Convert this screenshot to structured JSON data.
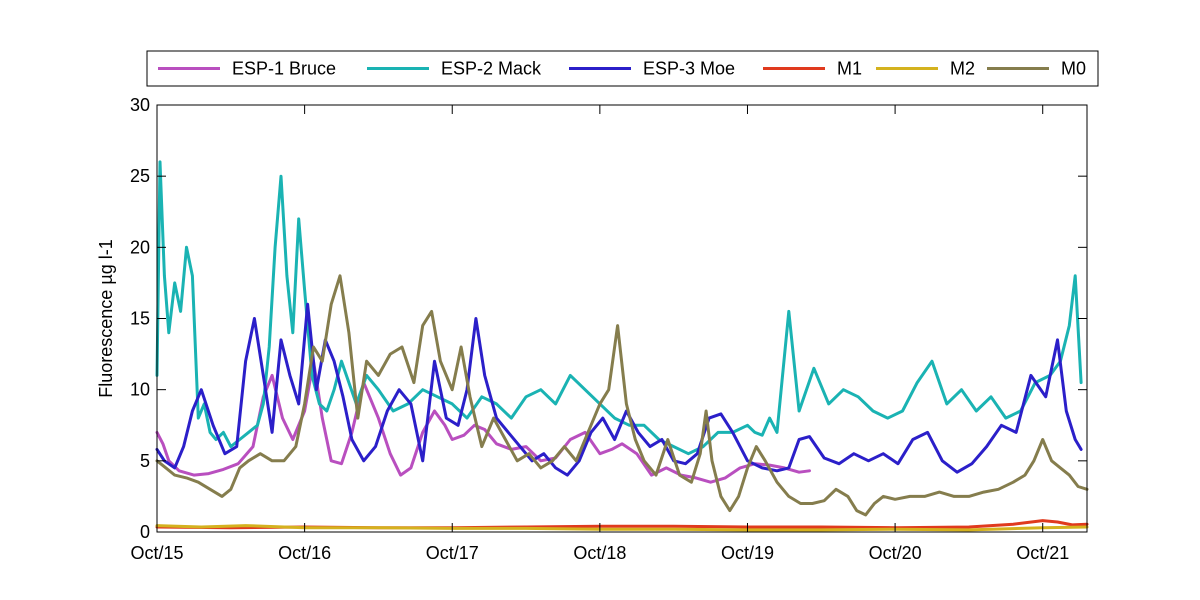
{
  "chart_data": {
    "type": "line",
    "ylabel": "Fluorescence µg l-1",
    "ylim": [
      0,
      30
    ],
    "yticks": [
      0,
      5,
      10,
      15,
      20,
      25,
      30
    ],
    "xlim": [
      15,
      21.3
    ],
    "xticks": [
      {
        "value": 15,
        "label": "Oct/15"
      },
      {
        "value": 16,
        "label": "Oct/16"
      },
      {
        "value": 17,
        "label": "Oct/17"
      },
      {
        "value": 18,
        "label": "Oct/18"
      },
      {
        "value": 19,
        "label": "Oct/19"
      },
      {
        "value": 20,
        "label": "Oct/20"
      },
      {
        "value": 21,
        "label": "Oct/21"
      }
    ],
    "legend_position": "top",
    "series": [
      {
        "name": "ESP-1 Bruce",
        "color": "#b94fbf",
        "x": [
          15.0,
          15.04,
          15.08,
          15.15,
          15.25,
          15.35,
          15.45,
          15.55,
          15.65,
          15.72,
          15.78,
          15.85,
          15.92,
          16.0,
          16.06,
          16.12,
          16.18,
          16.25,
          16.32,
          16.4,
          16.5,
          16.58,
          16.65,
          16.72,
          16.8,
          16.88,
          16.95,
          17.0,
          17.08,
          17.15,
          17.22,
          17.3,
          17.4,
          17.5,
          17.6,
          17.7,
          17.8,
          17.9,
          18.0,
          18.08,
          18.15,
          18.25,
          18.35,
          18.45,
          18.55,
          18.65,
          18.75,
          18.85,
          18.95,
          19.05,
          19.15,
          19.25,
          19.35,
          19.42
        ],
        "y": [
          7.0,
          6.2,
          5.0,
          4.3,
          4.0,
          4.1,
          4.4,
          4.8,
          6.0,
          9.5,
          11.0,
          8.0,
          6.5,
          8.5,
          12.0,
          8.0,
          5.0,
          4.8,
          7.0,
          10.5,
          8.0,
          5.5,
          4.0,
          4.5,
          7.0,
          8.5,
          7.5,
          6.5,
          6.8,
          7.5,
          7.2,
          6.2,
          5.8,
          6.0,
          5.0,
          5.2,
          6.5,
          7.0,
          5.5,
          5.8,
          6.2,
          5.5,
          4.0,
          4.5,
          4.0,
          3.8,
          3.5,
          3.8,
          4.5,
          4.8,
          4.7,
          4.5,
          4.2,
          4.3
        ]
      },
      {
        "name": "ESP-2 Mack",
        "color": "#1ab3b3",
        "x": [
          15.0,
          15.02,
          15.05,
          15.08,
          15.12,
          15.16,
          15.2,
          15.24,
          15.28,
          15.32,
          15.36,
          15.4,
          15.45,
          15.5,
          15.56,
          15.62,
          15.68,
          15.72,
          15.76,
          15.8,
          15.84,
          15.88,
          15.92,
          15.96,
          16.0,
          16.05,
          16.1,
          16.15,
          16.2,
          16.25,
          16.3,
          16.35,
          16.42,
          16.5,
          16.6,
          16.7,
          16.8,
          16.9,
          17.0,
          17.1,
          17.2,
          17.3,
          17.4,
          17.5,
          17.6,
          17.7,
          17.8,
          17.9,
          18.0,
          18.1,
          18.2,
          18.3,
          18.4,
          18.5,
          18.6,
          18.7,
          18.8,
          18.9,
          19.0,
          19.05,
          19.1,
          19.15,
          19.2,
          19.28,
          19.35,
          19.45,
          19.55,
          19.65,
          19.75,
          19.85,
          19.95,
          20.05,
          20.15,
          20.25,
          20.35,
          20.45,
          20.55,
          20.65,
          20.75,
          20.85,
          20.95,
          21.05,
          21.12,
          21.18,
          21.22,
          21.26
        ],
        "y": [
          11.0,
          26.0,
          18.0,
          14.0,
          17.5,
          15.5,
          20.0,
          18.0,
          8.0,
          9.0,
          7.0,
          6.5,
          7.0,
          6.0,
          6.5,
          7.0,
          7.5,
          9.0,
          13.0,
          20.0,
          25.0,
          18.0,
          14.0,
          22.0,
          17.0,
          11.0,
          9.0,
          8.5,
          10.0,
          12.0,
          10.5,
          9.0,
          11.0,
          10.0,
          8.5,
          9.0,
          10.0,
          9.5,
          9.0,
          8.0,
          9.5,
          9.0,
          8.0,
          9.5,
          10.0,
          9.0,
          11.0,
          10.0,
          9.0,
          8.0,
          7.5,
          7.5,
          6.5,
          6.0,
          5.5,
          6.0,
          7.0,
          7.0,
          7.5,
          7.0,
          6.8,
          8.0,
          7.0,
          15.5,
          8.5,
          11.5,
          9.0,
          10.0,
          9.5,
          8.5,
          8.0,
          8.5,
          10.5,
          12.0,
          9.0,
          10.0,
          8.5,
          9.5,
          8.0,
          8.5,
          10.5,
          11.0,
          12.0,
          14.5,
          18.0,
          10.5
        ]
      },
      {
        "name": "ESP-3 Moe",
        "color": "#2b1fc9",
        "x": [
          15.0,
          15.05,
          15.12,
          15.18,
          15.24,
          15.3,
          15.38,
          15.46,
          15.54,
          15.6,
          15.66,
          15.72,
          15.78,
          15.84,
          15.9,
          15.96,
          16.02,
          16.08,
          16.14,
          16.2,
          16.26,
          16.32,
          16.4,
          16.48,
          16.56,
          16.64,
          16.72,
          16.8,
          16.88,
          16.96,
          17.04,
          17.1,
          17.16,
          17.22,
          17.3,
          17.38,
          17.46,
          17.54,
          17.62,
          17.7,
          17.78,
          17.86,
          17.94,
          18.02,
          18.1,
          18.18,
          18.26,
          18.34,
          18.42,
          18.5,
          18.58,
          18.66,
          18.74,
          18.82,
          18.9,
          19.0,
          19.1,
          19.2,
          19.28,
          19.35,
          19.42,
          19.52,
          19.62,
          19.72,
          19.82,
          19.92,
          20.02,
          20.12,
          20.22,
          20.32,
          20.42,
          20.52,
          20.62,
          20.72,
          20.82,
          20.92,
          21.02,
          21.1,
          21.16,
          21.22,
          21.26
        ],
        "y": [
          5.8,
          5.0,
          4.5,
          6.0,
          8.5,
          10.0,
          7.5,
          5.5,
          6.0,
          12.0,
          15.0,
          11.0,
          7.0,
          13.5,
          11.0,
          9.0,
          16.0,
          10.0,
          13.5,
          12.0,
          9.5,
          6.5,
          5.0,
          6.0,
          8.5,
          10.0,
          9.0,
          5.0,
          12.0,
          8.0,
          7.5,
          10.0,
          15.0,
          11.0,
          8.0,
          7.0,
          6.0,
          5.0,
          5.5,
          4.5,
          4.0,
          5.0,
          7.0,
          8.0,
          6.5,
          8.5,
          7.0,
          6.0,
          6.5,
          5.0,
          4.8,
          5.5,
          8.0,
          8.3,
          7.0,
          5.0,
          4.5,
          4.3,
          4.5,
          6.5,
          6.7,
          5.2,
          4.8,
          5.5,
          5.0,
          5.5,
          4.8,
          6.5,
          7.0,
          5.0,
          4.2,
          4.8,
          6.0,
          7.5,
          7.0,
          11.0,
          9.5,
          13.5,
          8.5,
          6.5,
          5.8
        ]
      },
      {
        "name": "M1",
        "color": "#e03a1e",
        "x": [
          15.0,
          15.5,
          16.0,
          16.5,
          17.0,
          17.5,
          18.0,
          18.5,
          19.0,
          19.5,
          20.0,
          20.5,
          20.8,
          21.0,
          21.1,
          21.2,
          21.3
        ],
        "y": [
          0.35,
          0.3,
          0.35,
          0.3,
          0.3,
          0.35,
          0.4,
          0.4,
          0.35,
          0.35,
          0.3,
          0.35,
          0.55,
          0.8,
          0.7,
          0.5,
          0.55
        ]
      },
      {
        "name": "M2",
        "color": "#d4b21e",
        "x": [
          15.0,
          15.3,
          15.6,
          16.0,
          16.5,
          17.0,
          17.5,
          18.0,
          18.5,
          19.0,
          19.5,
          20.0,
          20.5,
          21.0,
          21.3
        ],
        "y": [
          0.45,
          0.35,
          0.45,
          0.3,
          0.3,
          0.25,
          0.25,
          0.2,
          0.2,
          0.15,
          0.15,
          0.2,
          0.15,
          0.3,
          0.35
        ]
      },
      {
        "name": "M0",
        "color": "#857d4d",
        "x": [
          15.0,
          15.06,
          15.12,
          15.2,
          15.28,
          15.36,
          15.44,
          15.5,
          15.56,
          15.62,
          15.7,
          15.78,
          15.86,
          15.94,
          16.0,
          16.06,
          16.12,
          16.18,
          16.24,
          16.3,
          16.36,
          16.42,
          16.5,
          16.58,
          16.66,
          16.74,
          16.8,
          16.86,
          16.92,
          17.0,
          17.06,
          17.12,
          17.2,
          17.28,
          17.36,
          17.44,
          17.52,
          17.6,
          17.68,
          17.76,
          17.84,
          17.92,
          18.0,
          18.06,
          18.12,
          18.18,
          18.24,
          18.3,
          18.38,
          18.46,
          18.54,
          18.62,
          18.68,
          18.72,
          18.76,
          18.82,
          18.88,
          18.94,
          19.0,
          19.06,
          19.12,
          19.2,
          19.28,
          19.36,
          19.44,
          19.52,
          19.6,
          19.68,
          19.74,
          19.8,
          19.86,
          19.92,
          20.0,
          20.1,
          20.2,
          20.3,
          20.4,
          20.5,
          20.6,
          20.7,
          20.8,
          20.88,
          20.94,
          21.0,
          21.06,
          21.12,
          21.18,
          21.24,
          21.3
        ],
        "y": [
          5.0,
          4.5,
          4.0,
          3.8,
          3.5,
          3.0,
          2.5,
          3.0,
          4.5,
          5.0,
          5.5,
          5.0,
          5.0,
          6.0,
          9.0,
          13.0,
          12.0,
          16.0,
          18.0,
          14.0,
          8.0,
          12.0,
          11.0,
          12.5,
          13.0,
          10.5,
          14.5,
          15.5,
          12.0,
          10.0,
          13.0,
          9.5,
          6.0,
          8.0,
          6.5,
          5.0,
          5.5,
          4.5,
          5.0,
          6.0,
          5.0,
          7.0,
          9.0,
          10.0,
          14.5,
          9.0,
          6.5,
          5.0,
          4.0,
          6.5,
          4.0,
          3.5,
          5.5,
          8.5,
          5.0,
          2.5,
          1.5,
          2.5,
          4.5,
          6.0,
          5.0,
          3.5,
          2.5,
          2.0,
          2.0,
          2.2,
          3.0,
          2.5,
          1.5,
          1.2,
          2.0,
          2.5,
          2.3,
          2.5,
          2.5,
          2.8,
          2.5,
          2.5,
          2.8,
          3.0,
          3.5,
          4.0,
          5.0,
          6.5,
          5.0,
          4.5,
          4.0,
          3.2,
          3.0
        ]
      }
    ]
  }
}
